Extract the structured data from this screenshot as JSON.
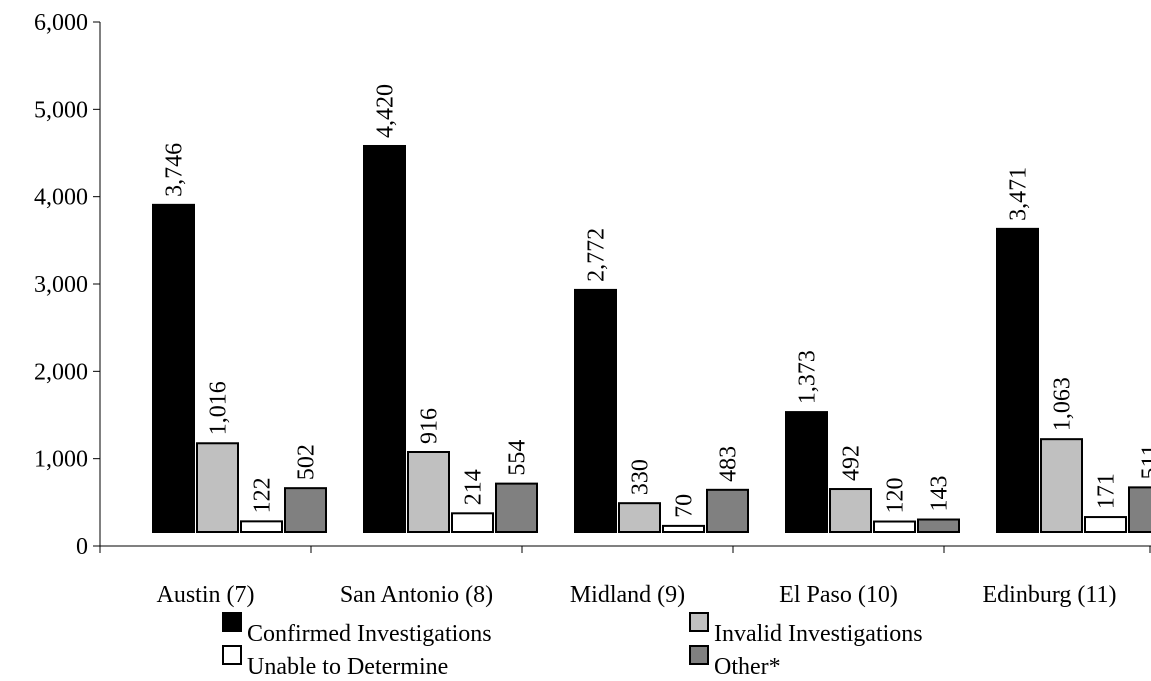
{
  "chart_data": {
    "type": "bar",
    "categories": [
      "Austin (7)",
      "San Antonio (8)",
      "Midland (9)",
      "El Paso (10)",
      "Edinburg (11)"
    ],
    "series": [
      {
        "name": "Confirmed Investigations",
        "color": "#000000",
        "values": [
          3746,
          4420,
          2772,
          1373,
          3471
        ],
        "labels": [
          "3,746",
          "4,420",
          "2,772",
          "1,373",
          "3,471"
        ]
      },
      {
        "name": "Invalid Investigations",
        "color": "#c0c0c0",
        "values": [
          1016,
          916,
          330,
          492,
          1063
        ],
        "labels": [
          "1,016",
          "916",
          "330",
          "492",
          "1,063"
        ]
      },
      {
        "name": "Unable to Determine",
        "color": "#ffffff",
        "values": [
          122,
          214,
          70,
          120,
          171
        ],
        "labels": [
          "122",
          "214",
          "70",
          "120",
          "171"
        ]
      },
      {
        "name": "Other*",
        "color": "#808080",
        "values": [
          502,
          554,
          483,
          143,
          511
        ],
        "labels": [
          "502",
          "554",
          "483",
          "143",
          "511"
        ]
      }
    ],
    "yticks": [
      0,
      1000,
      2000,
      3000,
      4000,
      5000,
      6000
    ],
    "ytick_labels": [
      "0",
      "1,000",
      "2,000",
      "3,000",
      "4,000",
      "5,000",
      "6,000"
    ],
    "ylim": [
      0,
      6000
    ],
    "title": "",
    "xlabel": "",
    "ylabel": "",
    "grid": false,
    "legend_position": "bottom"
  }
}
